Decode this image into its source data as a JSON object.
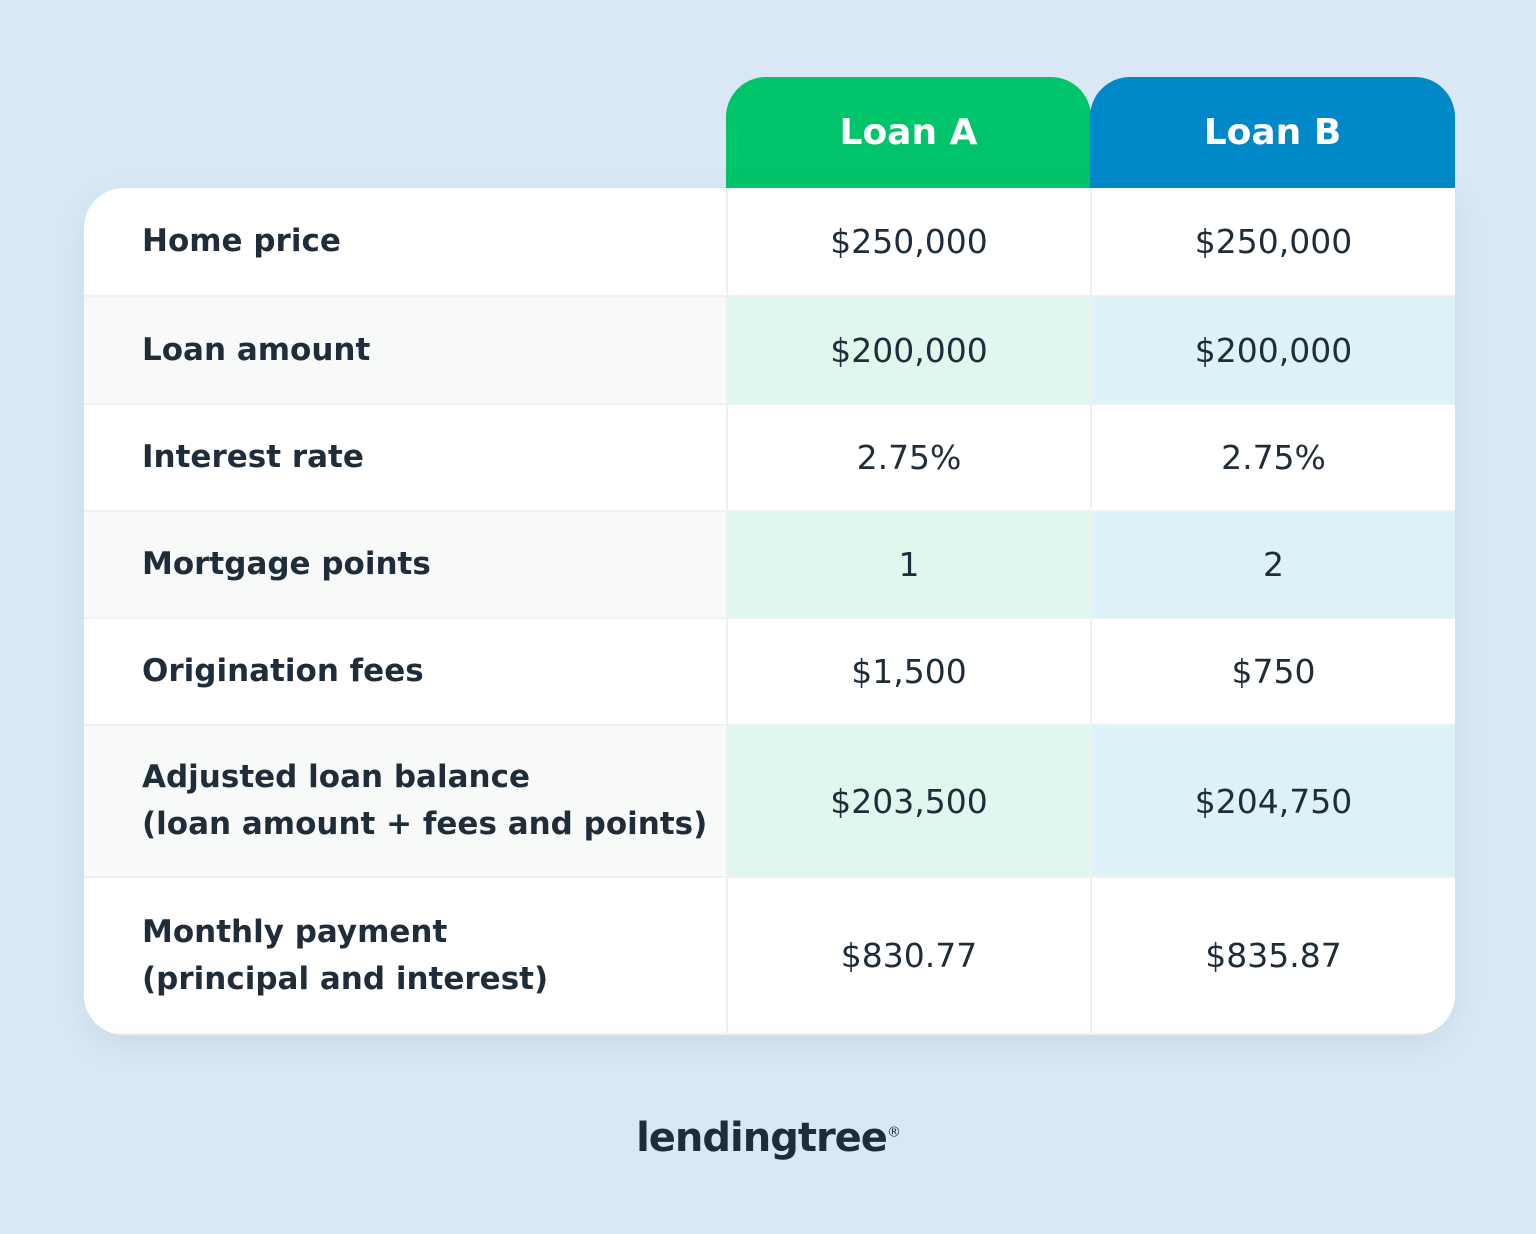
{
  "table": {
    "columns": [
      "Loan A",
      "Loan B"
    ],
    "rows": [
      {
        "label": [
          "Home price"
        ],
        "values": [
          "$250,000",
          "$250,000"
        ]
      },
      {
        "label": [
          "Loan amount"
        ],
        "values": [
          "$200,000",
          "$200,000"
        ]
      },
      {
        "label": [
          "Interest rate"
        ],
        "values": [
          "2.75%",
          "2.75%"
        ]
      },
      {
        "label": [
          "Mortgage points"
        ],
        "values": [
          "1",
          "2"
        ]
      },
      {
        "label": [
          "Origination fees"
        ],
        "values": [
          "$1,500",
          "$750"
        ]
      },
      {
        "label": [
          "Adjusted loan balance",
          "(loan amount + fees and points)"
        ],
        "values": [
          "$203,500",
          "$204,750"
        ]
      },
      {
        "label": [
          "Monthly payment",
          "(principal and interest)"
        ],
        "values": [
          "$830.77",
          "$835.87"
        ]
      }
    ]
  },
  "logo": {
    "text": "lendingtree",
    "mark": "®"
  }
}
